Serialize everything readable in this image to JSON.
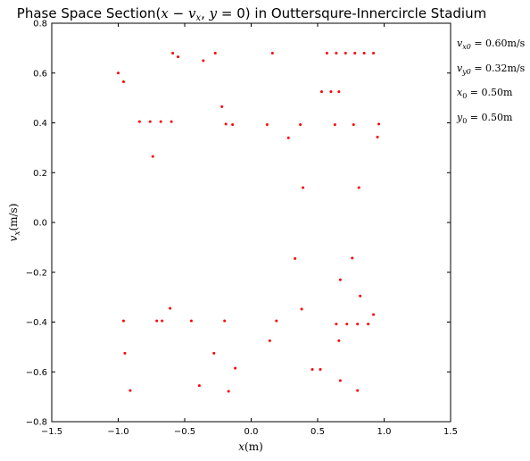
{
  "chart_data": {
    "type": "scatter",
    "title": "Phase Space Section(x − vx, y = 0) in Outtersqure-Innercircle Stadium",
    "xlabel": "x(m)",
    "ylabel": "vx(m/s)",
    "xlim": [
      -1.5,
      1.5
    ],
    "ylim": [
      -0.8,
      0.8
    ],
    "xticks": [
      "−1.5",
      "−1.0",
      "−0.5",
      "0.0",
      "0.5",
      "1.0",
      "1.5"
    ],
    "yticks": [
      "−0.8",
      "−0.6",
      "−0.4",
      "−0.2",
      "0.0",
      "0.2",
      "0.4",
      "0.6",
      "0.8"
    ],
    "grid": false,
    "marker_color": "#ff0000",
    "annotations": [
      "vx0 = 0.60m/s",
      "vy0 = 0.32m/s",
      "x0 = 0.50m",
      "y0 = 0.50m"
    ],
    "points": [
      [
        -1.0,
        0.6
      ],
      [
        -0.96,
        0.565
      ],
      [
        -0.59,
        0.68
      ],
      [
        -0.55,
        0.665
      ],
      [
        -0.36,
        0.65
      ],
      [
        -0.27,
        0.68
      ],
      [
        0.16,
        0.68
      ],
      [
        0.57,
        0.68
      ],
      [
        0.64,
        0.68
      ],
      [
        0.71,
        0.68
      ],
      [
        0.78,
        0.68
      ],
      [
        0.85,
        0.68
      ],
      [
        0.92,
        0.68
      ],
      [
        0.53,
        0.525
      ],
      [
        0.6,
        0.525
      ],
      [
        0.66,
        0.525
      ],
      [
        -0.22,
        0.465
      ],
      [
        -0.84,
        0.405
      ],
      [
        -0.76,
        0.405
      ],
      [
        -0.68,
        0.405
      ],
      [
        -0.6,
        0.405
      ],
      [
        -0.19,
        0.395
      ],
      [
        -0.14,
        0.393
      ],
      [
        0.12,
        0.393
      ],
      [
        0.37,
        0.393
      ],
      [
        0.63,
        0.393
      ],
      [
        0.77,
        0.393
      ],
      [
        0.96,
        0.395
      ],
      [
        0.28,
        0.34
      ],
      [
        0.95,
        0.343
      ],
      [
        -0.74,
        0.265
      ],
      [
        0.39,
        0.14
      ],
      [
        0.81,
        0.14
      ],
      [
        0.33,
        -0.145
      ],
      [
        0.76,
        -0.143
      ],
      [
        0.67,
        -0.23
      ],
      [
        0.82,
        -0.295
      ],
      [
        -0.61,
        -0.345
      ],
      [
        0.38,
        -0.348
      ],
      [
        0.92,
        -0.37
      ],
      [
        -0.96,
        -0.395
      ],
      [
        -0.71,
        -0.395
      ],
      [
        -0.67,
        -0.395
      ],
      [
        -0.45,
        -0.395
      ],
      [
        -0.2,
        -0.395
      ],
      [
        0.19,
        -0.395
      ],
      [
        0.64,
        -0.408
      ],
      [
        0.72,
        -0.408
      ],
      [
        0.8,
        -0.408
      ],
      [
        0.88,
        -0.408
      ],
      [
        0.14,
        -0.475
      ],
      [
        0.66,
        -0.475
      ],
      [
        -0.95,
        -0.525
      ],
      [
        -0.28,
        -0.525
      ],
      [
        -0.12,
        -0.585
      ],
      [
        0.46,
        -0.59
      ],
      [
        0.52,
        -0.59
      ],
      [
        -0.39,
        -0.655
      ],
      [
        0.67,
        -0.635
      ],
      [
        -0.91,
        -0.675
      ],
      [
        -0.17,
        -0.678
      ],
      [
        0.8,
        -0.675
      ]
    ]
  }
}
